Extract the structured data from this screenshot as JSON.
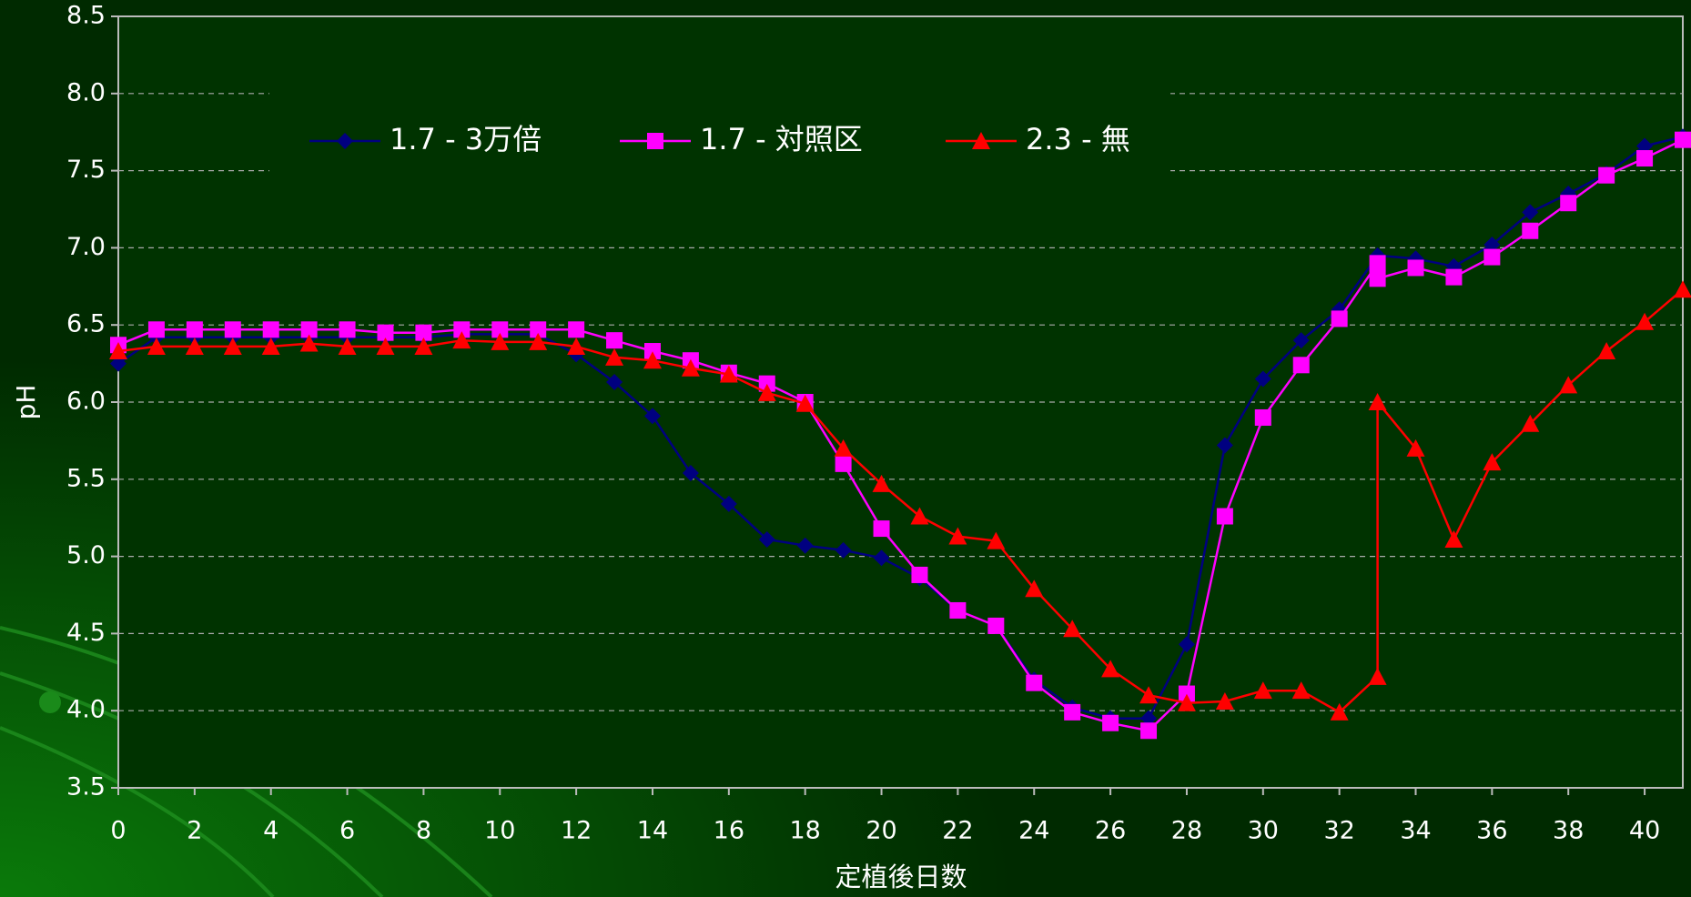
{
  "chart_data": {
    "type": "line",
    "x_label": "定植後日数",
    "y_label": "pH",
    "xlim": [
      0,
      41
    ],
    "xticks": [
      0,
      2,
      4,
      6,
      8,
      10,
      12,
      14,
      16,
      18,
      20,
      22,
      24,
      26,
      28,
      30,
      32,
      34,
      36,
      38,
      40
    ],
    "ylim": [
      3.5,
      8.5
    ],
    "yticks": [
      3.5,
      {
        "value": 4,
        "label": "4.0"
      },
      4.5,
      {
        "value": 5,
        "label": "5.0"
      },
      5.5,
      {
        "value": 6,
        "label": "6.0"
      },
      6.5,
      {
        "value": 7,
        "label": "7.0"
      },
      7.5,
      {
        "value": 8,
        "label": "8.0"
      },
      8.5
    ],
    "grid": true,
    "legend": "top",
    "series": [
      {
        "name": "1.7 - 3万倍",
        "color": "#000080",
        "marker": "diamond",
        "x": [
          0,
          1,
          2,
          3,
          4,
          5,
          6,
          7,
          8,
          9,
          10,
          11,
          12,
          13,
          14,
          15,
          16,
          17,
          18,
          19,
          20,
          21,
          22,
          23,
          24,
          25,
          26,
          27,
          28,
          29,
          30,
          31,
          32,
          33,
          34,
          35,
          36,
          37,
          38,
          39,
          40,
          41
        ],
        "values": [
          6.25,
          6.42,
          6.42,
          6.42,
          6.42,
          6.42,
          6.42,
          6.42,
          6.42,
          6.44,
          6.44,
          6.44,
          6.31,
          6.13,
          5.91,
          5.54,
          5.34,
          5.11,
          5.07,
          5.04,
          4.99,
          4.86,
          4.65,
          4.55,
          4.2,
          4.02,
          3.95,
          3.95,
          4.43,
          5.72,
          6.15,
          6.4,
          6.6,
          6.95,
          6.93,
          6.88,
          7.02,
          7.23,
          7.35,
          7.48,
          7.66,
          7.72
        ]
      },
      {
        "name": "1.7 - 対照区",
        "color": "#ff00ff",
        "marker": "square",
        "x": [
          0,
          1,
          2,
          3,
          4,
          5,
          6,
          7,
          8,
          9,
          10,
          11,
          12,
          13,
          14,
          15,
          16,
          17,
          18,
          19,
          20,
          21,
          22,
          23,
          24,
          25,
          26,
          27,
          28,
          29,
          30,
          31,
          32,
          33,
          33,
          34,
          35,
          36,
          37,
          38,
          39,
          40,
          41
        ],
        "values": [
          6.37,
          6.47,
          6.47,
          6.47,
          6.47,
          6.47,
          6.47,
          6.45,
          6.45,
          6.47,
          6.47,
          6.47,
          6.47,
          6.4,
          6.33,
          6.27,
          6.19,
          6.12,
          6.0,
          5.6,
          5.18,
          4.88,
          4.65,
          4.55,
          4.18,
          3.99,
          3.92,
          3.87,
          4.11,
          5.26,
          5.9,
          6.24,
          6.54,
          6.9,
          6.8,
          6.87,
          6.81,
          6.94,
          7.11,
          7.29,
          7.47,
          7.58,
          7.7
        ]
      },
      {
        "name": "2.3 - 無",
        "color": "#ff0000",
        "marker": "triangle",
        "x": [
          0,
          1,
          2,
          3,
          4,
          5,
          6,
          7,
          8,
          9,
          10,
          11,
          12,
          13,
          14,
          15,
          16,
          17,
          18,
          19,
          20,
          21,
          22,
          23,
          24,
          25,
          26,
          27,
          28,
          29,
          30,
          31,
          32,
          33,
          33,
          34,
          35,
          36,
          37,
          38,
          39,
          40,
          41
        ],
        "values": [
          6.33,
          6.36,
          6.36,
          6.36,
          6.36,
          6.38,
          6.36,
          6.36,
          6.36,
          6.4,
          6.39,
          6.39,
          6.36,
          6.29,
          6.27,
          6.22,
          6.18,
          6.06,
          5.99,
          5.7,
          5.47,
          5.26,
          5.13,
          5.1,
          4.79,
          4.53,
          4.27,
          4.1,
          4.05,
          4.06,
          4.13,
          4.13,
          3.99,
          4.22,
          6.0,
          5.7,
          5.11,
          5.61,
          5.86,
          6.11,
          6.33,
          6.52,
          6.73
        ]
      }
    ]
  }
}
